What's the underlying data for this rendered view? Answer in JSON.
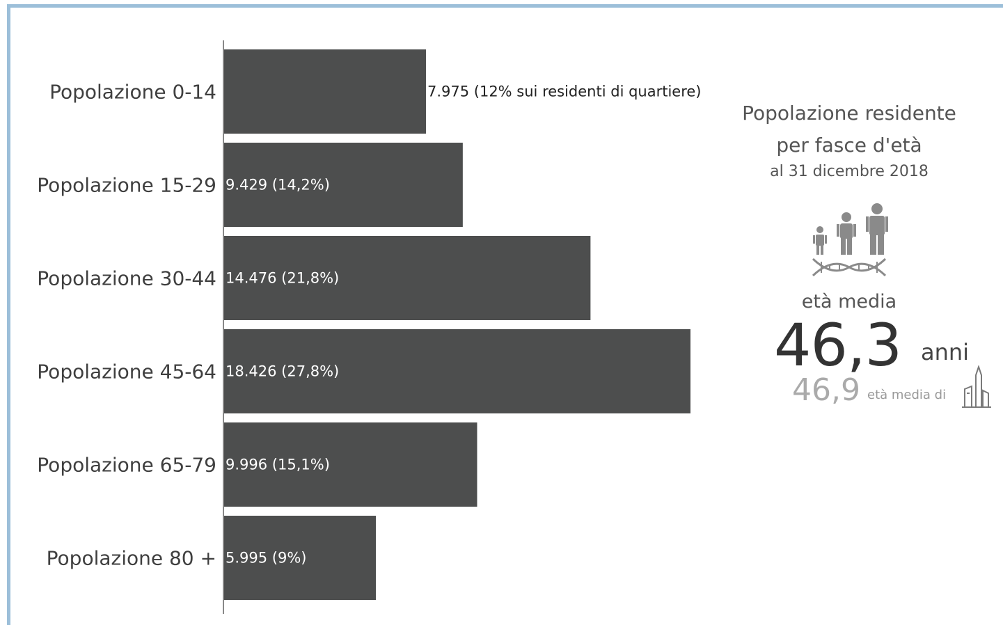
{
  "chart_data": {
    "type": "bar",
    "orientation": "horizontal",
    "categories": [
      "Popolazione 0-14",
      "Popolazione 15-29",
      "Popolazione 30-44",
      "Popolazione 45-64",
      "Popolazione 65-79",
      "Popolazione 80 +"
    ],
    "values": [
      7975,
      9429,
      14476,
      18426,
      9996,
      5995
    ],
    "data_labels": [
      "7.975 (12% sui residenti di quartiere)",
      "9.429 (14,2%)",
      "14.476 (21,8%)",
      "18.426 (27,8%)",
      "9.996 (15,1%)",
      "5.995 (9%)"
    ],
    "bar_color": "#4d4e4e",
    "xlim": [
      0,
      18426
    ],
    "grid": false,
    "legend": "none"
  },
  "info": {
    "title_line1": "Popolazione residente",
    "title_line2": "per fasce d'età",
    "date": "al 31 dicembre 2018",
    "people_icon": "family-dna-icon",
    "avg_label": "età media",
    "avg_value": "46,3",
    "avg_unit": "anni",
    "city_avg_value": "46,9",
    "city_avg_label": "età media di",
    "city_icon": "city-towers-icon"
  },
  "colors": {
    "frame_border": "#9cbfd9",
    "text_dark": "#3f3f3f",
    "text_light": "#aaaaaa",
    "icon_gray": "#8a8a8a"
  }
}
